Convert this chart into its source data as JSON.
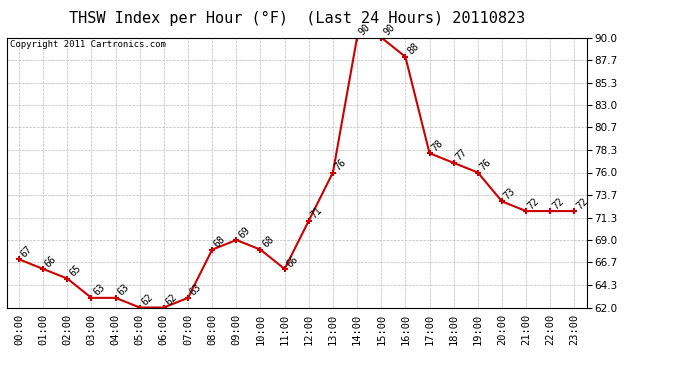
{
  "title": "THSW Index per Hour (°F)  (Last 24 Hours) 20110823",
  "copyright": "Copyright 2011 Cartronics.com",
  "hours": [
    "00:00",
    "01:00",
    "02:00",
    "03:00",
    "04:00",
    "05:00",
    "06:00",
    "07:00",
    "08:00",
    "09:00",
    "10:00",
    "11:00",
    "12:00",
    "13:00",
    "14:00",
    "15:00",
    "16:00",
    "17:00",
    "18:00",
    "19:00",
    "20:00",
    "21:00",
    "22:00",
    "23:00"
  ],
  "values": [
    67,
    66,
    65,
    63,
    63,
    62,
    62,
    63,
    68,
    69,
    68,
    66,
    71,
    76,
    90,
    90,
    88,
    78,
    77,
    76,
    73,
    72,
    72,
    72
  ],
  "ylim": [
    62.0,
    90.0
  ],
  "yticks": [
    62.0,
    64.3,
    66.7,
    69.0,
    71.3,
    73.7,
    76.0,
    78.3,
    80.7,
    83.0,
    85.3,
    87.7,
    90.0
  ],
  "line_color": "#cc0000",
  "marker_color": "#cc0000",
  "bg_color": "#ffffff",
  "grid_color": "#bbbbbb",
  "title_fontsize": 11,
  "label_fontsize": 7.5,
  "annotation_fontsize": 7,
  "copyright_fontsize": 6.5
}
